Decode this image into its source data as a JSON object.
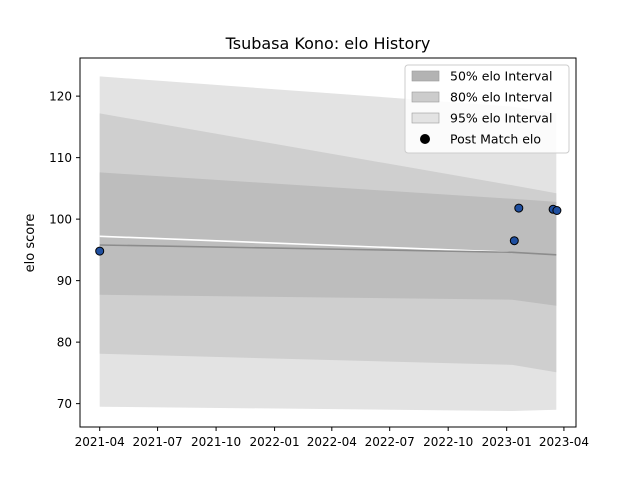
{
  "chart_data": {
    "type": "area",
    "title": "Tsubasa Kono: elo History",
    "xlabel": "",
    "ylabel": "elo score",
    "xlim": [
      "2021-03-01",
      "2023-04-20"
    ],
    "ylim": [
      66.2,
      126.2
    ],
    "x_ticks": [
      "2021-04",
      "2021-07",
      "2021-10",
      "2022-01",
      "2022-04",
      "2022-07",
      "2022-10",
      "2023-01",
      "2023-04"
    ],
    "y_ticks": [
      70,
      80,
      90,
      100,
      110,
      120
    ],
    "grid": false,
    "legend_position": "top-right",
    "legend": [
      {
        "label": "50% elo Interval",
        "swatch": "#b3b3b3",
        "kind": "band"
      },
      {
        "label": "80% elo Interval",
        "swatch": "#cccccc",
        "kind": "band"
      },
      {
        "label": "95% elo Interval",
        "swatch": "#e3e3e3",
        "kind": "band"
      },
      {
        "label": "Post Match elo",
        "swatch": "#000000",
        "kind": "marker"
      }
    ],
    "bands": [
      {
        "name": "95% elo Interval",
        "color": "#e3e3e3",
        "x": [
          "2021-04-01",
          "2023-01-10",
          "2023-03-20"
        ],
        "upper": [
          123.2,
          118.3,
          117.2
        ],
        "lower": [
          69.5,
          68.8,
          69.0
        ]
      },
      {
        "name": "80% elo Interval",
        "color": "#cfcfcf",
        "x": [
          "2021-04-01",
          "2023-01-10",
          "2023-03-20"
        ],
        "upper": [
          117.2,
          105.5,
          104.2
        ],
        "lower": [
          78.1,
          76.3,
          75.1
        ]
      },
      {
        "name": "50% elo Interval",
        "color": "#bdbdbd",
        "x": [
          "2021-04-01",
          "2023-01-10",
          "2023-03-20"
        ],
        "upper": [
          107.6,
          103.3,
          102.8
        ],
        "lower": [
          87.7,
          86.9,
          85.9
        ]
      }
    ],
    "mean_line": {
      "color": "#8c8c8c",
      "x": [
        "2021-04-01",
        "2023-01-10",
        "2023-03-20"
      ],
      "y": [
        95.8,
        94.6,
        94.2
      ]
    },
    "reference_line": {
      "color": "#ffffff",
      "x": [
        "2021-04-01",
        "2023-01-10"
      ],
      "y": [
        97.2,
        94.6
      ]
    },
    "points": {
      "name": "Post Match elo",
      "color": "#1f4fa0",
      "x": [
        "2021-04-01",
        "2023-01-13",
        "2023-01-20",
        "2023-03-15",
        "2023-03-21"
      ],
      "y": [
        94.8,
        96.5,
        101.8,
        101.6,
        101.4
      ]
    }
  }
}
